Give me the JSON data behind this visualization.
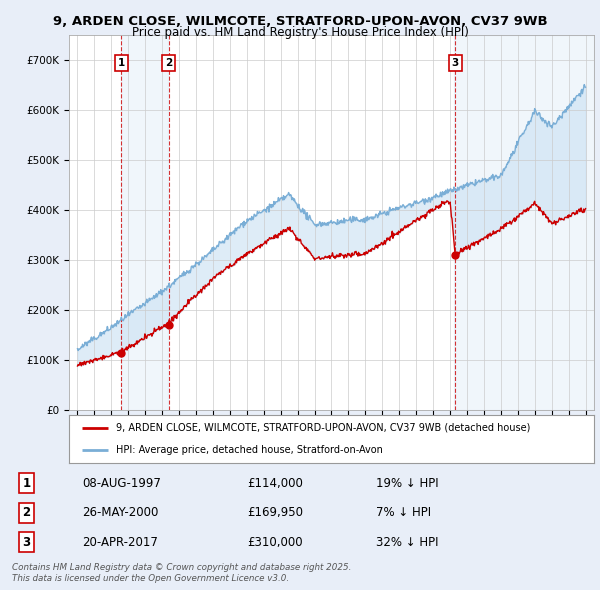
{
  "title_line1": "9, ARDEN CLOSE, WILMCOTE, STRATFORD-UPON-AVON, CV37 9WB",
  "title_line2": "Price paid vs. HM Land Registry's House Price Index (HPI)",
  "background_color": "#e8eef8",
  "plot_bg_color": "#ffffff",
  "red_color": "#cc0000",
  "blue_color": "#7aaed6",
  "fill_color": "#d0e4f5",
  "ylim": [
    0,
    750000
  ],
  "yticks": [
    0,
    100000,
    200000,
    300000,
    400000,
    500000,
    600000,
    700000
  ],
  "ytick_labels": [
    "£0",
    "£100K",
    "£200K",
    "£300K",
    "£400K",
    "£500K",
    "£600K",
    "£700K"
  ],
  "xlim_start": 1994.5,
  "xlim_end": 2025.5,
  "transactions": [
    {
      "num": 1,
      "date": "08-AUG-1997",
      "price": 114000,
      "pct": "19%",
      "direction": "↓",
      "year": 1997.6
    },
    {
      "num": 2,
      "date": "26-MAY-2000",
      "price": 169950,
      "pct": "7%",
      "direction": "↓",
      "year": 2000.4
    },
    {
      "num": 3,
      "date": "20-APR-2017",
      "price": 310000,
      "pct": "32%",
      "direction": "↓",
      "year": 2017.3
    }
  ],
  "legend_label_red": "9, ARDEN CLOSE, WILMCOTE, STRATFORD-UPON-AVON, CV37 9WB (detached house)",
  "legend_label_blue": "HPI: Average price, detached house, Stratford-on-Avon",
  "footer": "Contains HM Land Registry data © Crown copyright and database right 2025.\nThis data is licensed under the Open Government Licence v3.0."
}
